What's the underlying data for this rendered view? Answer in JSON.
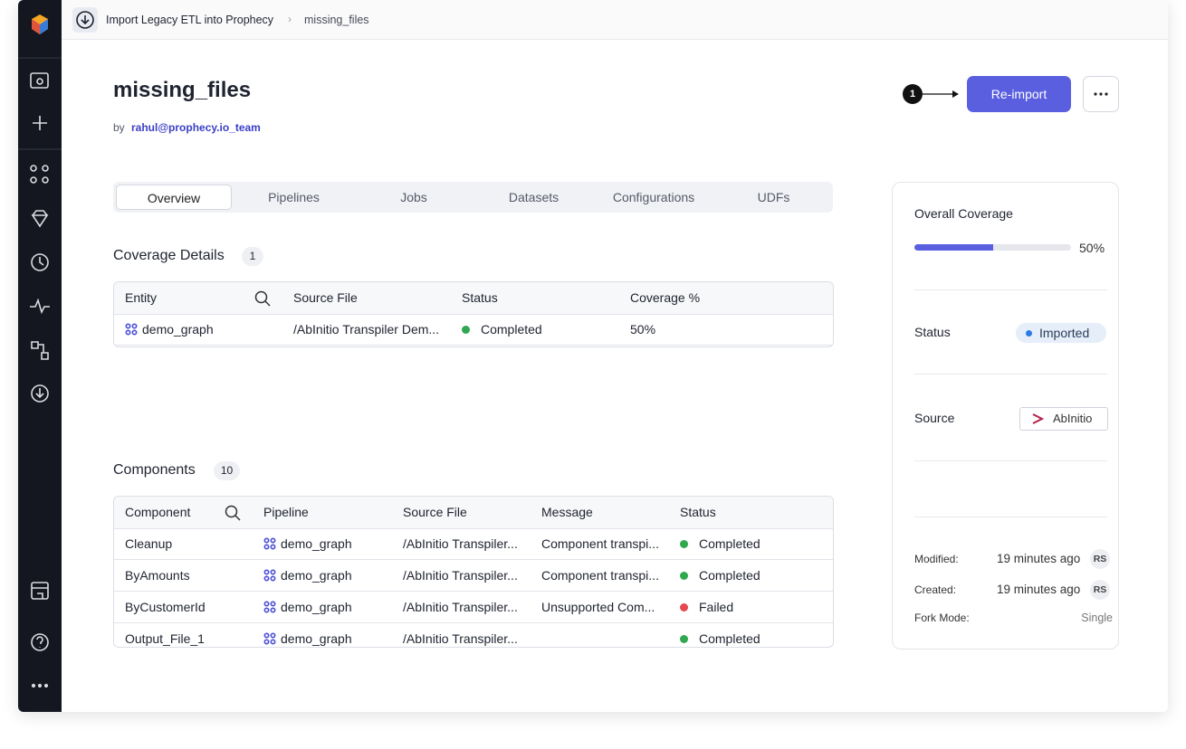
{
  "breadcrumb": [
    "Import Legacy ETL into Prophecy",
    "missing_files"
  ],
  "header": {
    "title": "missing_files",
    "by": "by",
    "author": "rahul@prophecy.io_team"
  },
  "callout": "1",
  "actions": {
    "reimport": "Re-import"
  },
  "tabs": [
    "Overview",
    "Pipelines",
    "Jobs",
    "Datasets",
    "Configurations",
    "UDFs"
  ],
  "coverage_details": {
    "title": "Coverage Details",
    "count": 1,
    "columns": [
      "Entity",
      "Source File",
      "Status",
      "Coverage %"
    ],
    "rows": [
      [
        "demo_graph",
        "/AbInitio Transpiler Dem...",
        "Completed",
        "50%"
      ]
    ],
    "status_colors": [
      "#2fa84f"
    ]
  },
  "components": {
    "title": "Components",
    "count": 10,
    "columns": [
      "Component",
      "Pipeline",
      "Source File",
      "Message",
      "Status"
    ],
    "rows": [
      [
        "Cleanup",
        "demo_graph",
        "/AbInitio Transpiler...",
        "Component transpi...",
        "Completed"
      ],
      [
        "ByAmounts",
        "demo_graph",
        "/AbInitio Transpiler...",
        "Component transpi...",
        "Completed"
      ],
      [
        "ByCustomerId",
        "demo_graph",
        "/AbInitio Transpiler...",
        "Unsupported Com...",
        "Failed"
      ],
      [
        "Output_File_1",
        "demo_graph",
        "/AbInitio Transpiler...",
        "",
        "Completed"
      ]
    ],
    "status_colors": [
      "#2fa84f",
      "#2fa84f",
      "#e5484d",
      "#2fa84f"
    ]
  },
  "summary": {
    "overall_coverage": {
      "label": "Overall Coverage",
      "value": {
        "value": 50,
        "label": "50%"
      },
      "color": "#5a5fe0"
    },
    "status": {
      "label": "Status",
      "value": "Imported"
    },
    "source": {
      "label": "Source",
      "value": "AbInitio"
    },
    "meta": [
      {
        "label": "Modified:",
        "value": "19 minutes ago",
        "user": "RS"
      },
      {
        "label": "Created:",
        "value": "19 minutes ago",
        "user": "RS"
      },
      {
        "label": "Fork Mode:",
        "value": "Single"
      }
    ]
  }
}
